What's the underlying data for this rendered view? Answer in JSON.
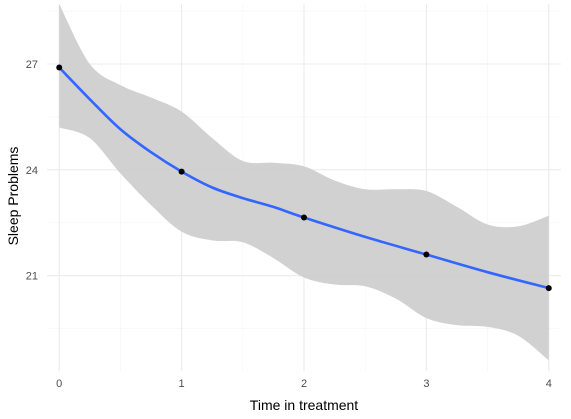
{
  "chart_data": {
    "type": "line",
    "title": "",
    "xlabel": "Time in treatment",
    "ylabel": "Sleep Problems",
    "x_ticks": [
      "0",
      "1",
      "2",
      "3",
      "4"
    ],
    "y_ticks": [
      "21",
      "24",
      "27"
    ],
    "xlim": [
      -0.1,
      4.1
    ],
    "ylim": [
      18.3,
      28.7
    ],
    "grid": true,
    "legend": "none",
    "series": [
      {
        "points": [
          {
            "x": 0,
            "y": 26.9
          },
          {
            "x": 1,
            "y": 23.95
          },
          {
            "x": 2,
            "y": 22.65
          },
          {
            "x": 3,
            "y": 21.6
          },
          {
            "x": 4,
            "y": 20.65
          }
        ],
        "smooth_fit": [
          {
            "x": 0,
            "y": 26.9
          },
          {
            "x": 0.25,
            "y": 26.0
          },
          {
            "x": 0.5,
            "y": 25.15
          },
          {
            "x": 0.75,
            "y": 24.5
          },
          {
            "x": 1,
            "y": 23.95
          },
          {
            "x": 1.25,
            "y": 23.5
          },
          {
            "x": 1.5,
            "y": 23.2
          },
          {
            "x": 1.75,
            "y": 22.95
          },
          {
            "x": 2,
            "y": 22.65
          },
          {
            "x": 2.5,
            "y": 22.1
          },
          {
            "x": 3,
            "y": 21.6
          },
          {
            "x": 3.5,
            "y": 21.1
          },
          {
            "x": 4,
            "y": 20.65
          }
        ],
        "band_upper": [
          {
            "x": 0,
            "y": 28.7
          },
          {
            "x": 0.25,
            "y": 27.0
          },
          {
            "x": 0.5,
            "y": 26.4
          },
          {
            "x": 0.75,
            "y": 26.05
          },
          {
            "x": 1,
            "y": 25.65
          },
          {
            "x": 1.25,
            "y": 24.9
          },
          {
            "x": 1.5,
            "y": 24.25
          },
          {
            "x": 1.75,
            "y": 24.2
          },
          {
            "x": 2,
            "y": 24.1
          },
          {
            "x": 2.25,
            "y": 23.7
          },
          {
            "x": 2.5,
            "y": 23.45
          },
          {
            "x": 2.75,
            "y": 23.45
          },
          {
            "x": 3,
            "y": 23.4
          },
          {
            "x": 3.25,
            "y": 22.95
          },
          {
            "x": 3.5,
            "y": 22.45
          },
          {
            "x": 3.75,
            "y": 22.4
          },
          {
            "x": 4,
            "y": 22.7
          }
        ],
        "band_lower": [
          {
            "x": 0,
            "y": 25.2
          },
          {
            "x": 0.25,
            "y": 24.9
          },
          {
            "x": 0.5,
            "y": 23.9
          },
          {
            "x": 0.75,
            "y": 23.0
          },
          {
            "x": 1,
            "y": 22.25
          },
          {
            "x": 1.25,
            "y": 22.0
          },
          {
            "x": 1.5,
            "y": 21.95
          },
          {
            "x": 1.75,
            "y": 21.5
          },
          {
            "x": 2,
            "y": 20.95
          },
          {
            "x": 2.25,
            "y": 20.75
          },
          {
            "x": 2.5,
            "y": 20.7
          },
          {
            "x": 2.75,
            "y": 20.35
          },
          {
            "x": 3,
            "y": 19.8
          },
          {
            "x": 3.25,
            "y": 19.6
          },
          {
            "x": 3.5,
            "y": 19.55
          },
          {
            "x": 3.75,
            "y": 19.3
          },
          {
            "x": 4,
            "y": 18.6
          }
        ]
      }
    ],
    "colors": {
      "background": "#ffffff",
      "grid_major": "#ebebeb",
      "grid_minor": "#f5f5f5",
      "band": "#cccccc",
      "line": "#3366ff",
      "points": "#000000"
    }
  }
}
